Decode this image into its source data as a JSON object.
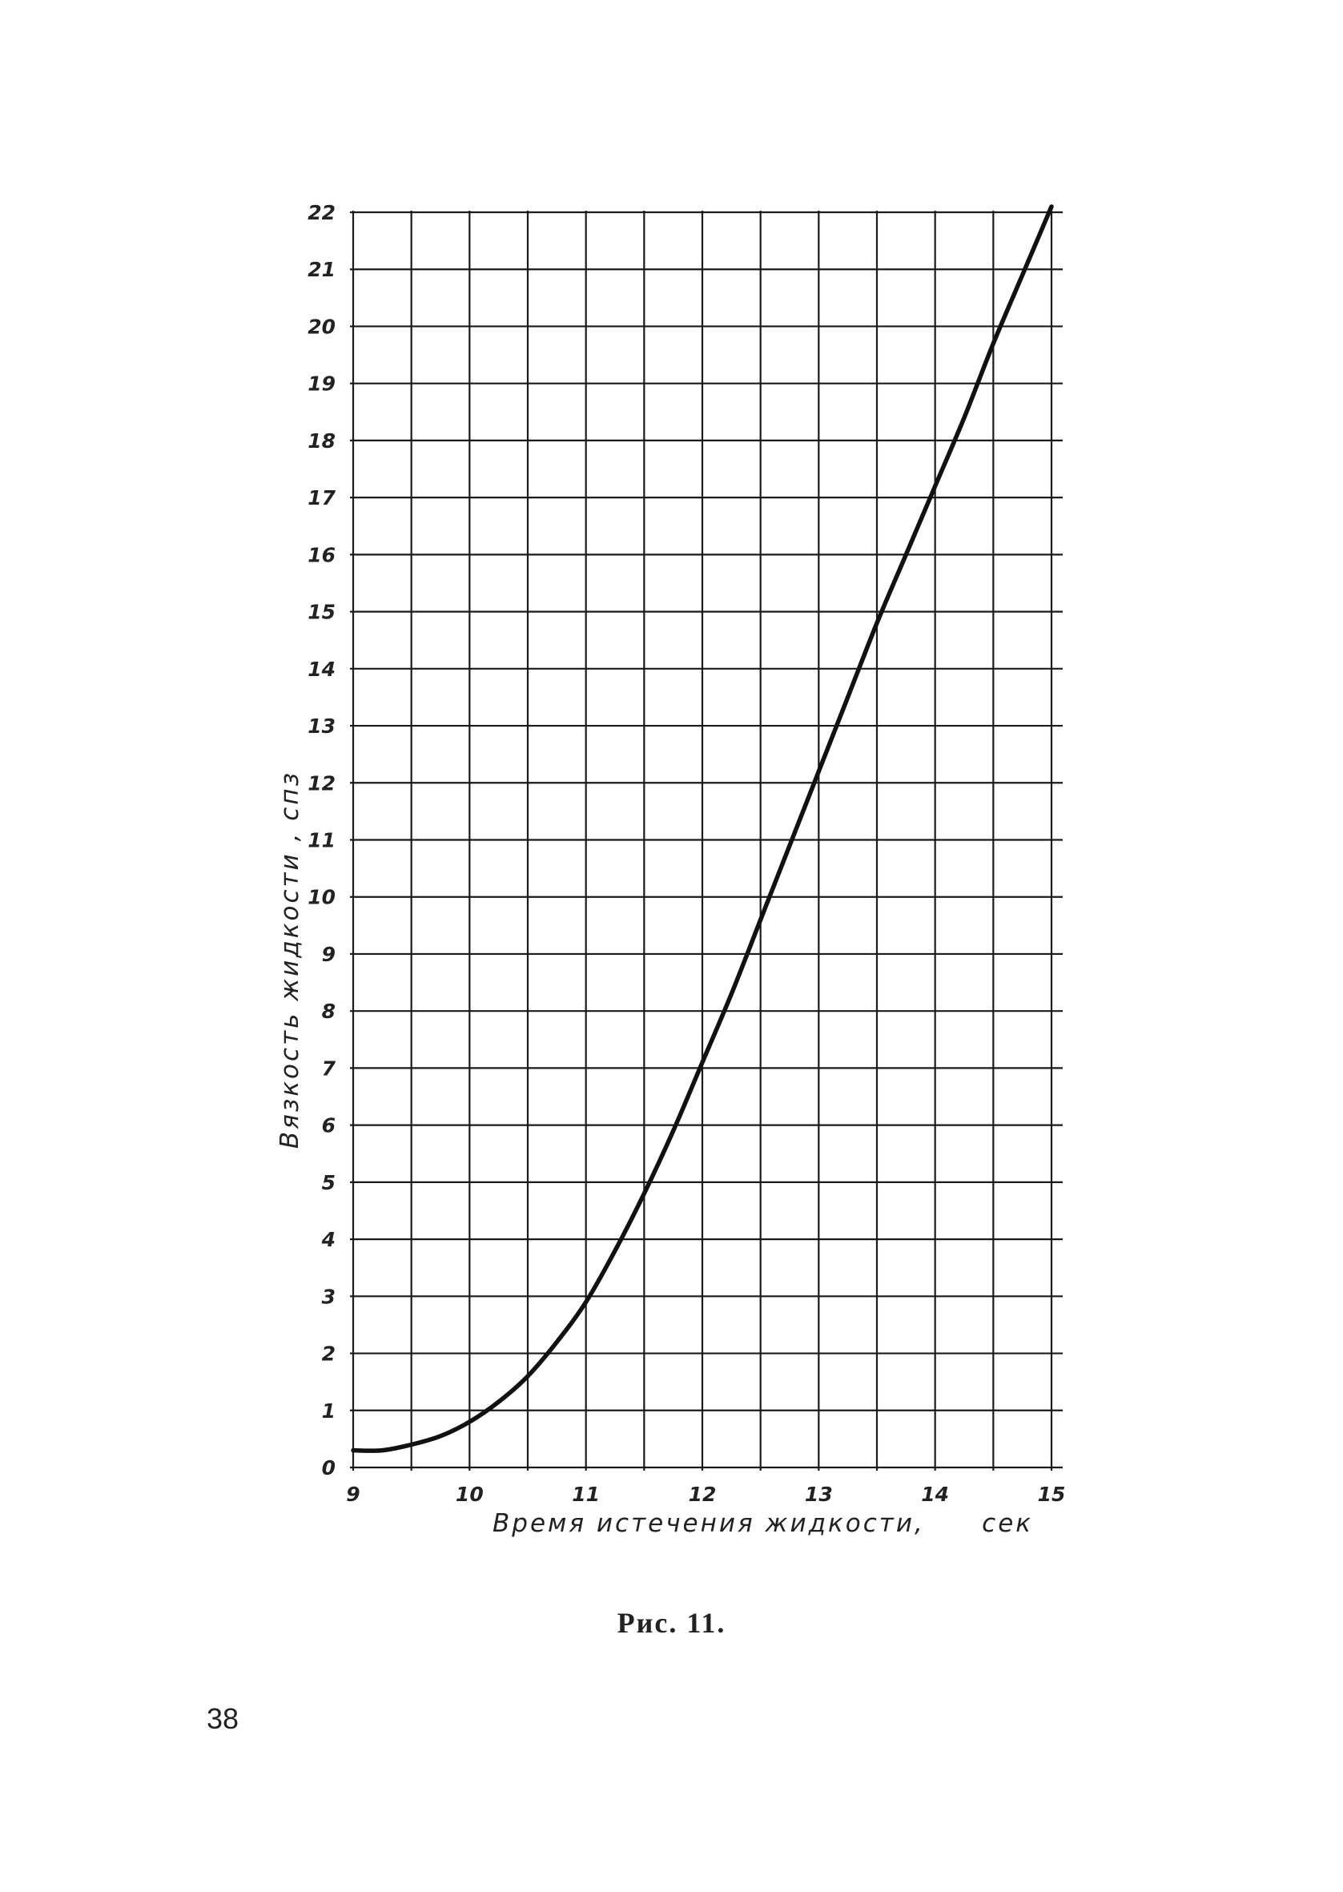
{
  "chart_data": {
    "type": "line",
    "title": "",
    "xlabel": "Время истечения жидкости,",
    "xunit": "сек",
    "ylabel": "Вязкость жидкости , спз",
    "xlim": [
      9,
      15
    ],
    "ylim": [
      0,
      22
    ],
    "xticks": [
      "9",
      "10",
      "11",
      "12",
      "13",
      "14",
      "15"
    ],
    "yticks": [
      "0",
      "1",
      "2",
      "3",
      "4",
      "5",
      "6",
      "7",
      "8",
      "9",
      "10",
      "11",
      "12",
      "13",
      "14",
      "15",
      "16",
      "17",
      "18",
      "19",
      "20",
      "21",
      "22"
    ],
    "grid": true,
    "series": [
      {
        "x": [
          9.0,
          9.25,
          9.5,
          9.75,
          10.0,
          10.25,
          10.5,
          10.75,
          11.0,
          11.25,
          11.5,
          11.75,
          12.0,
          12.25,
          12.5,
          12.75,
          13.0,
          13.25,
          13.5,
          13.75,
          14.0,
          14.25,
          14.5,
          14.75,
          15.0
        ],
        "y": [
          0.3,
          0.3,
          0.4,
          0.55,
          0.8,
          1.15,
          1.6,
          2.2,
          2.9,
          3.8,
          4.8,
          5.9,
          7.1,
          8.3,
          9.6,
          10.9,
          12.2,
          13.5,
          14.8,
          16.0,
          17.2,
          18.4,
          19.7,
          20.9,
          22.1
        ]
      }
    ]
  },
  "caption": "Рис. 11.",
  "page_number": "38"
}
